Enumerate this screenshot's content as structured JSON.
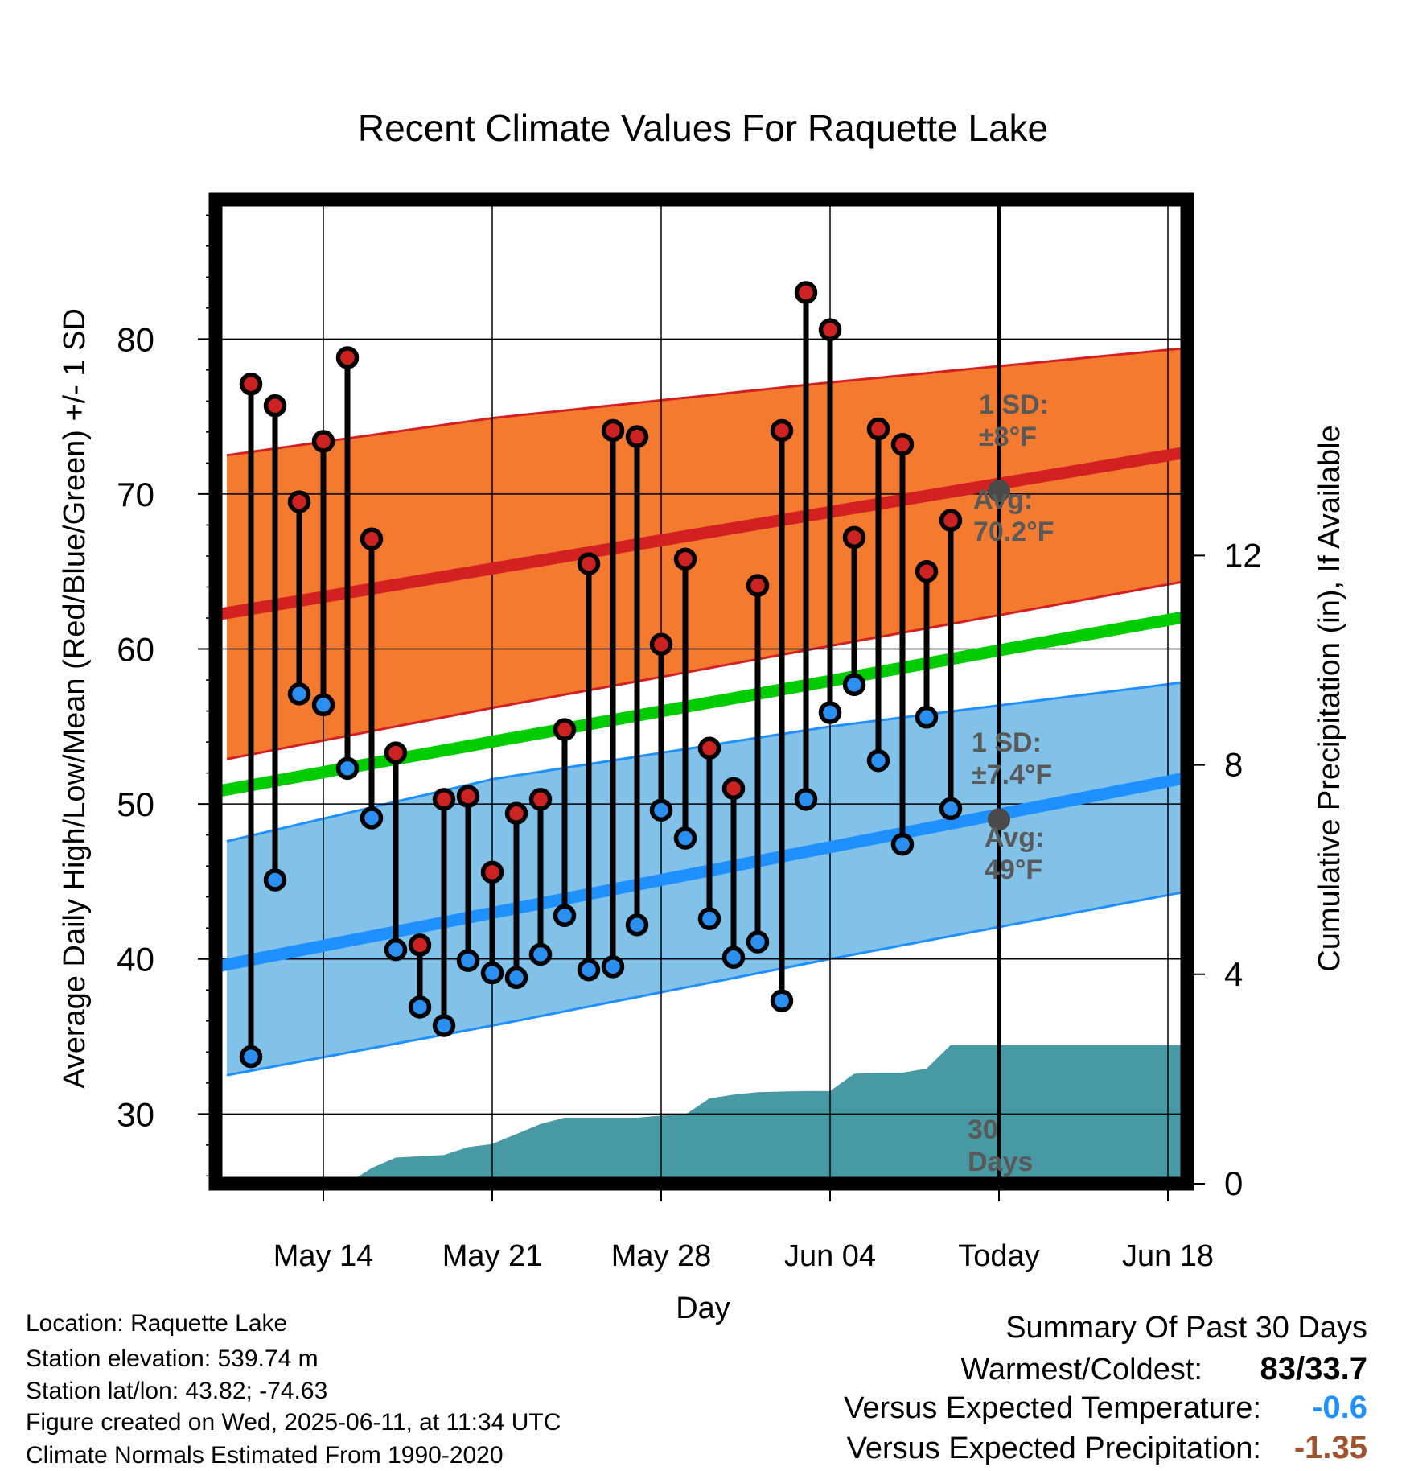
{
  "chart_data": {
    "type": "line",
    "title": "Recent Climate Values For Raquette Lake",
    "xlabel": "Day",
    "ylabel": "Average Daily High/Low/Mean (Red/Blue/Green) +/- 1 SD",
    "y2label": "Cumulative Precipitation (in), If Available",
    "ylim": [
      25.5,
      89
    ],
    "y2lim": [
      0,
      18.8
    ],
    "x_range": [
      "2025-05-10",
      "2025-06-22"
    ],
    "x_ticks": [
      {
        "date": "2025-05-14",
        "label": "May 14"
      },
      {
        "date": "2025-05-21",
        "label": "May 21"
      },
      {
        "date": "2025-05-28",
        "label": "May 28"
      },
      {
        "date": "2025-06-04",
        "label": "Jun 04"
      },
      {
        "date": "2025-06-11",
        "label": "Today"
      },
      {
        "date": "2025-06-18",
        "label": "Jun 18"
      }
    ],
    "y_ticks": [
      30,
      40,
      50,
      60,
      70,
      80
    ],
    "y2_ticks": [
      0,
      4,
      8,
      12
    ],
    "grid": true,
    "normals": {
      "high_mean": [
        {
          "date": "2025-05-10",
          "value": 62.2
        },
        {
          "date": "2025-06-22",
          "value": 72.7
        }
      ],
      "high_plus_sd": [
        {
          "date": "2025-05-10",
          "value": 72.5
        },
        {
          "date": "2025-05-21",
          "value": 74.9
        },
        {
          "date": "2025-06-04",
          "value": 77.2
        },
        {
          "date": "2025-06-22",
          "value": 79.9
        }
      ],
      "high_minus_sd": [
        {
          "date": "2025-05-10",
          "value": 52.9
        },
        {
          "date": "2025-05-21",
          "value": 56.2
        },
        {
          "date": "2025-06-04",
          "value": 60.2
        },
        {
          "date": "2025-06-22",
          "value": 65.3
        }
      ],
      "mean": [
        {
          "date": "2025-05-10",
          "value": 50.8
        },
        {
          "date": "2025-06-22",
          "value": 62.1
        }
      ],
      "low_mean": [
        {
          "date": "2025-05-10",
          "value": 39.5
        },
        {
          "date": "2025-06-22",
          "value": 51.7
        }
      ],
      "low_plus_sd": [
        {
          "date": "2025-05-10",
          "value": 47.6
        },
        {
          "date": "2025-05-21",
          "value": 51.6
        },
        {
          "date": "2025-06-04",
          "value": 55.0
        },
        {
          "date": "2025-06-22",
          "value": 58.5
        }
      ],
      "low_minus_sd": [
        {
          "date": "2025-05-10",
          "value": 32.5
        },
        {
          "date": "2025-05-21",
          "value": 35.7
        },
        {
          "date": "2025-06-04",
          "value": 40.0
        },
        {
          "date": "2025-06-22",
          "value": 45.3
        }
      ]
    },
    "daily": [
      {
        "date": "2025-05-11",
        "high": 77.1,
        "low": 33.7
      },
      {
        "date": "2025-05-12",
        "high": 75.7,
        "low": 45.1
      },
      {
        "date": "2025-05-13",
        "high": 69.5,
        "low": 57.1
      },
      {
        "date": "2025-05-14",
        "high": 73.4,
        "low": 56.4
      },
      {
        "date": "2025-05-15",
        "high": 78.8,
        "low": 52.3
      },
      {
        "date": "2025-05-16",
        "high": 67.1,
        "low": 49.1
      },
      {
        "date": "2025-05-17",
        "high": 53.3,
        "low": 40.6
      },
      {
        "date": "2025-05-18",
        "high": 40.9,
        "low": 36.9
      },
      {
        "date": "2025-05-19",
        "high": 50.3,
        "low": 35.7
      },
      {
        "date": "2025-05-20",
        "high": 50.5,
        "low": 39.9
      },
      {
        "date": "2025-05-21",
        "high": 45.6,
        "low": 39.1
      },
      {
        "date": "2025-05-22",
        "high": 49.4,
        "low": 38.8
      },
      {
        "date": "2025-05-23",
        "high": 50.3,
        "low": 40.3
      },
      {
        "date": "2025-05-24",
        "high": 54.8,
        "low": 42.8
      },
      {
        "date": "2025-05-25",
        "high": 65.5,
        "low": 39.3
      },
      {
        "date": "2025-05-26",
        "high": 74.1,
        "low": 39.5
      },
      {
        "date": "2025-05-27",
        "high": 73.7,
        "low": 42.2
      },
      {
        "date": "2025-05-28",
        "high": 60.3,
        "low": 49.6
      },
      {
        "date": "2025-05-29",
        "high": 65.8,
        "low": 47.8
      },
      {
        "date": "2025-05-30",
        "high": 53.6,
        "low": 42.6
      },
      {
        "date": "2025-05-31",
        "high": 51.0,
        "low": 40.1
      },
      {
        "date": "2025-06-01",
        "high": 64.1,
        "low": 41.1
      },
      {
        "date": "2025-06-02",
        "high": 74.1,
        "low": 37.3
      },
      {
        "date": "2025-06-03",
        "high": 83.0,
        "low": 50.3
      },
      {
        "date": "2025-06-04",
        "high": 80.6,
        "low": 55.9
      },
      {
        "date": "2025-06-05",
        "high": 67.2,
        "low": 57.7
      },
      {
        "date": "2025-06-06",
        "high": 74.2,
        "low": 52.8
      },
      {
        "date": "2025-06-07",
        "high": 73.2,
        "low": 47.4
      },
      {
        "date": "2025-06-08",
        "high": 65.0,
        "low": 55.6
      },
      {
        "date": "2025-06-09",
        "high": 68.3,
        "low": 49.7
      }
    ],
    "today_normals": {
      "high": 70.2,
      "low": 49.0
    },
    "precip_cumulative": [
      {
        "date": "2025-05-15",
        "value": 0.0
      },
      {
        "date": "2025-05-16",
        "value": 0.3
      },
      {
        "date": "2025-05-17",
        "value": 0.5
      },
      {
        "date": "2025-05-19",
        "value": 0.55
      },
      {
        "date": "2025-05-20",
        "value": 0.7
      },
      {
        "date": "2025-05-21",
        "value": 0.76
      },
      {
        "date": "2025-05-22",
        "value": 0.95
      },
      {
        "date": "2025-05-23",
        "value": 1.14
      },
      {
        "date": "2025-05-24",
        "value": 1.26
      },
      {
        "date": "2025-05-27",
        "value": 1.26
      },
      {
        "date": "2025-05-28",
        "value": 1.3
      },
      {
        "date": "2025-05-29",
        "value": 1.32
      },
      {
        "date": "2025-05-30",
        "value": 1.63
      },
      {
        "date": "2025-05-31",
        "value": 1.7
      },
      {
        "date": "2025-06-01",
        "value": 1.75
      },
      {
        "date": "2025-06-02",
        "value": 1.76
      },
      {
        "date": "2025-06-03",
        "value": 1.77
      },
      {
        "date": "2025-06-04",
        "value": 1.77
      },
      {
        "date": "2025-06-05",
        "value": 2.1
      },
      {
        "date": "2025-06-06",
        "value": 2.12
      },
      {
        "date": "2025-06-07",
        "value": 2.12
      },
      {
        "date": "2025-06-08",
        "value": 2.2
      },
      {
        "date": "2025-06-09",
        "value": 2.65
      },
      {
        "date": "2025-06-22",
        "value": 2.65
      }
    ],
    "annotations": {
      "high_sd": [
        "1 SD:",
        "±8°F"
      ],
      "high_avg": [
        "Avg:",
        "70.2°F"
      ],
      "low_sd": [
        "1 SD:",
        "±7.4°F"
      ],
      "low_avg": [
        "Avg:",
        "49°F"
      ],
      "days": [
        "30",
        "Days"
      ]
    },
    "colors": {
      "high_band": "#f47a30",
      "high_line": "#d32121",
      "low_band": "#82c1e8",
      "low_line": "#1e90ff",
      "mean_line": "#00cc00",
      "precip": "#4799a3",
      "high_marker": "#cc2222",
      "low_marker": "#2a8ff0",
      "today_marker": "#4a4a4a"
    }
  },
  "info": {
    "location": "Location: Raquette Lake",
    "elevation": "Station elevation: 539.74 m",
    "latlon": "Station lat/lon: 43.82; -74.63",
    "created": "Figure created on Wed, 2025-06-11, at 11:34 UTC",
    "normals": "Climate Normals Estimated From 1990-2020"
  },
  "summary": {
    "title": "Summary Of Past 30 Days",
    "warmest_label": "Warmest/Coldest:",
    "warmest_value": "83/33.7",
    "temp_label": "Versus Expected Temperature:",
    "temp_value": "-0.6",
    "temp_color": "#1e90ff",
    "precip_label": "Versus Expected Precipitation:",
    "precip_value": "-1.35",
    "precip_color": "#a0522d"
  }
}
